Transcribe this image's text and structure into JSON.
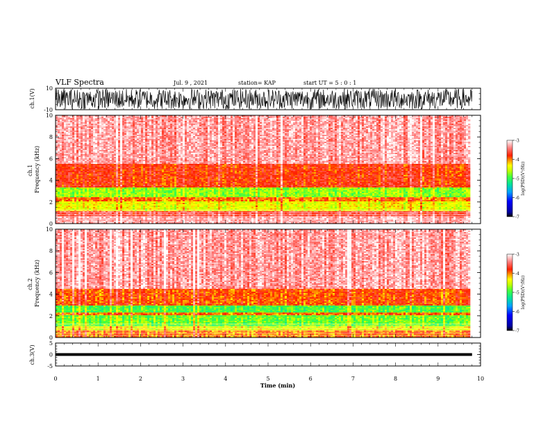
{
  "header": {
    "title": "VLF Spectra",
    "date": "Jul. 9 , 2021",
    "station": "station= KAP",
    "start": "start UT =  5 : 0  : 1"
  },
  "colorbar": {
    "label": "log(PSD)(V²/Hz)",
    "ticks": [
      "-3",
      "-4",
      "-5",
      "-6",
      "-7"
    ]
  },
  "chart_data": [
    {
      "type": "line",
      "panel": "ch1-waveform",
      "ylabel": "ch.1(V)",
      "ylim": [
        -10,
        10
      ],
      "yticks": [
        "10",
        "-10"
      ],
      "xlim": [
        0,
        10
      ],
      "description_values": {
        "amplitude_range_V": [
          -10,
          10
        ]
      }
    },
    {
      "type": "heatmap",
      "panel": "ch1-spectrogram",
      "ylabel": "ch.1\nFrequency (kHz)",
      "ylim": [
        0,
        10
      ],
      "yticks": [
        "0",
        "2",
        "4",
        "6",
        "8",
        "10"
      ],
      "xlim": [
        0,
        10
      ],
      "zlabel": "log(PSD)(V²/Hz)",
      "zlim": [
        -7,
        -3
      ],
      "bands": [
        {
          "freq_kHz": [
            0,
            0.6
          ],
          "level": -3.3
        },
        {
          "freq_kHz": [
            0.6,
            1.2
          ],
          "level": -3.6
        },
        {
          "freq_kHz": [
            1.2,
            2.0
          ],
          "level": -4.4
        },
        {
          "freq_kHz": [
            2.0,
            2.4
          ],
          "level": -4.0
        },
        {
          "freq_kHz": [
            2.4,
            3.3
          ],
          "level": -4.7
        },
        {
          "freq_kHz": [
            3.3,
            5.5
          ],
          "level": -3.8
        },
        {
          "freq_kHz": [
            5.5,
            10
          ],
          "level": -3.3
        }
      ]
    },
    {
      "type": "heatmap",
      "panel": "ch2-spectrogram",
      "ylabel": "ch.2\nFrequency (kHz)",
      "ylim": [
        0,
        10
      ],
      "yticks": [
        "0",
        "2",
        "4",
        "6",
        "8",
        "10"
      ],
      "xlim": [
        0,
        10
      ],
      "zlabel": "log(PSD)(V²/Hz)",
      "zlim": [
        -7,
        -3
      ],
      "bands": [
        {
          "freq_kHz": [
            0,
            0.6
          ],
          "level": -4.0
        },
        {
          "freq_kHz": [
            0.6,
            1.0
          ],
          "level": -4.4
        },
        {
          "freq_kHz": [
            1.0,
            2.0
          ],
          "level": -4.8
        },
        {
          "freq_kHz": [
            2.0,
            2.3
          ],
          "level": -4.0
        },
        {
          "freq_kHz": [
            2.3,
            3.0
          ],
          "level": -4.9
        },
        {
          "freq_kHz": [
            3.0,
            4.5
          ],
          "level": -3.9
        },
        {
          "freq_kHz": [
            4.5,
            10
          ],
          "level": -3.3
        }
      ]
    },
    {
      "type": "line",
      "panel": "ch3-waveform",
      "ylabel": "ch.3(V)",
      "ylim": [
        -5,
        5
      ],
      "yticks": [
        "5",
        "0",
        "-5"
      ],
      "xlim": [
        0,
        10
      ],
      "xlabel": "Time (min)",
      "xticks": [
        "0",
        "1",
        "2",
        "3",
        "4",
        "5",
        "6",
        "7",
        "8",
        "9",
        "10"
      ],
      "band_V": [
        -0.6,
        0.6
      ]
    }
  ]
}
